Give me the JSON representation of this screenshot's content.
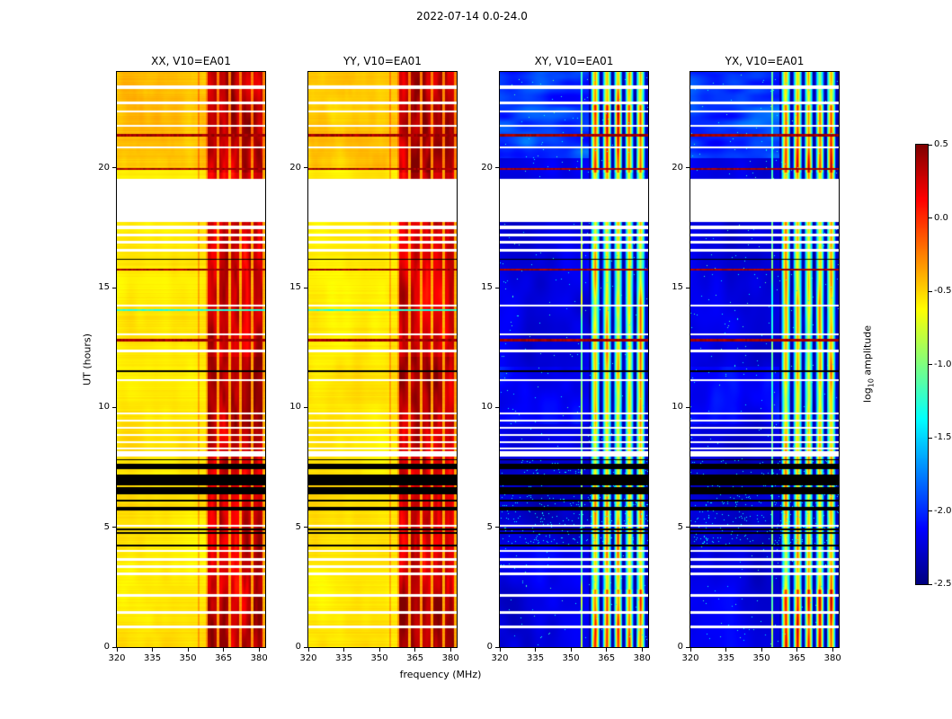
{
  "chart_data": {
    "type": "heatmap",
    "title": "2022-07-14 0.0-24.0",
    "panels": [
      {
        "title": "XX, V10=EA01",
        "kind": "warm"
      },
      {
        "title": "YY, V10=EA01",
        "kind": "warm"
      },
      {
        "title": "XY, V10=EA01",
        "kind": "cold"
      },
      {
        "title": "YX, V10=EA01",
        "kind": "cold"
      }
    ],
    "x_axis": {
      "label": "frequency (MHz)",
      "range": [
        320,
        382.6
      ],
      "ticks": [
        320,
        335,
        350,
        365,
        380
      ]
    },
    "y_axis": {
      "label": "UT (hours)",
      "range": [
        0,
        24
      ],
      "ticks": [
        0,
        5,
        10,
        15,
        20
      ]
    },
    "colorbar": {
      "label_prefix": "log",
      "label_sub": "10",
      "label_suffix": " amplitude",
      "vmin": -2.5,
      "vmax": 0.5,
      "ticks": [
        0.5,
        0.0,
        -0.5,
        -1.0,
        -1.5,
        -2.0,
        -2.5
      ],
      "colormap": "jet"
    },
    "features": {
      "time_gap_ut": [
        17.75,
        19.55
      ],
      "flag_cluster_ut": {
        "range": [
          4.2,
          7.85
        ],
        "density": 0.45
      },
      "white_rows": [
        [
          23.35,
          0.07
        ],
        [
          22.7,
          0.05
        ],
        [
          22.35,
          0.05
        ],
        [
          21.75,
          0.05
        ],
        [
          20.85,
          0.05
        ],
        [
          17.5,
          0.07
        ],
        [
          17.2,
          0.05
        ],
        [
          16.9,
          0.05
        ],
        [
          16.55,
          0.05
        ],
        [
          14.25,
          0.05
        ],
        [
          13.05,
          0.05
        ],
        [
          12.35,
          0.05
        ],
        [
          11.15,
          0.04
        ],
        [
          9.75,
          0.05
        ],
        [
          9.45,
          0.05
        ],
        [
          9.15,
          0.05
        ],
        [
          8.85,
          0.05
        ],
        [
          8.55,
          0.05
        ],
        [
          8.3,
          0.04
        ],
        [
          8.05,
          0.11
        ],
        [
          5.05,
          0.04
        ],
        [
          4.0,
          0.04
        ],
        [
          3.65,
          0.05
        ],
        [
          3.35,
          0.05
        ],
        [
          3.05,
          0.05
        ],
        [
          2.15,
          0.05
        ],
        [
          1.45,
          0.05
        ],
        [
          0.85,
          0.05
        ]
      ],
      "red_rows": [
        [
          21.35,
          0.055
        ],
        [
          19.95,
          0.055
        ],
        [
          15.75,
          0.05
        ],
        [
          12.8,
          0.045
        ]
      ],
      "black_rows": [
        [
          11.5,
          0.04
        ],
        [
          16.18,
          0.035
        ]
      ],
      "cyan_rows_warm": [
        [
          14.05,
          0.04
        ]
      ],
      "rfi_band_start_mhz": 357.5,
      "rfi_stripes_mhz": [
        [
          358.4,
          362.2
        ],
        [
          363.4,
          367.1
        ],
        [
          368.2,
          371.7
        ],
        [
          372.9,
          376.4
        ],
        [
          377.5,
          381.3
        ]
      ],
      "narrow_line_mhz": [
        354.6,
        0.35
      ],
      "warm_base_level": -0.62,
      "cold_base_level": -2.35
    }
  }
}
